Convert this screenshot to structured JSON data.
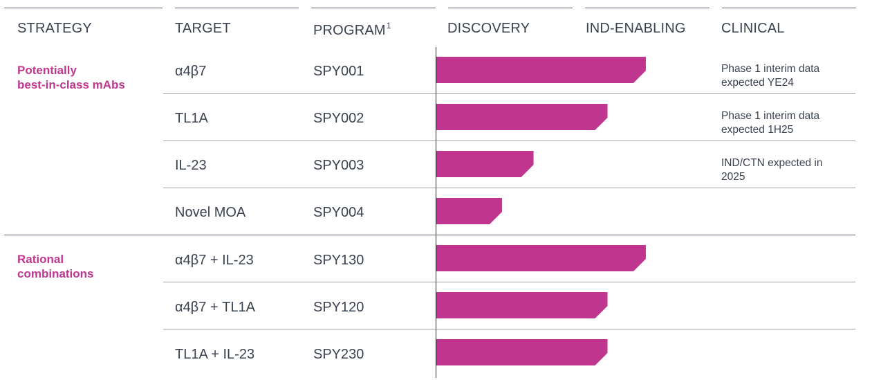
{
  "headers": {
    "strategy": "STRATEGY",
    "target": "TARGET",
    "program": "PROGRAM",
    "program_sup": "1",
    "discovery": "DISCOVERY",
    "ind_enabling": "IND-ENABLING",
    "clinical": "CLINICAL"
  },
  "groups": [
    {
      "label": "Potentially\nbest-in-class mAbs"
    },
    {
      "label": "Rational\ncombinations"
    }
  ],
  "colors": {
    "accent": "#c0368f",
    "text": "#3a4250",
    "rule": "#9aa0a8"
  },
  "chart_data": {
    "type": "bar",
    "title": "",
    "xlabel": "",
    "ylabel": "",
    "stages": [
      "DISCOVERY",
      "IND-ENABLING",
      "CLINICAL"
    ],
    "value_units": "development stage progress (0 = start of Discovery, 1 = end of Discovery, 2 = end of IND-Enabling)",
    "xlim": [
      0,
      2
    ],
    "categories": [
      "SPY001",
      "SPY002",
      "SPY003",
      "SPY004",
      "SPY130",
      "SPY120",
      "SPY230"
    ],
    "rows": [
      {
        "group": 0,
        "target": "α4β7",
        "program": "SPY001",
        "progress": 1.53,
        "clinical": "Phase 1 interim data\nexpected YE24"
      },
      {
        "group": 0,
        "target": "TL1A",
        "program": "SPY002",
        "progress": 1.25,
        "clinical": "Phase 1 interim data\nexpected 1H25"
      },
      {
        "group": 0,
        "target": "IL-23",
        "program": "SPY003",
        "progress": 0.71,
        "clinical": "IND/CTN expected in\n2025"
      },
      {
        "group": 0,
        "target": "Novel MOA",
        "program": "SPY004",
        "progress": 0.48,
        "clinical": ""
      },
      {
        "group": 1,
        "target": "α4β7 + IL-23",
        "program": "SPY130",
        "progress": 1.53,
        "clinical": ""
      },
      {
        "group": 1,
        "target": "α4β7 + TL1A",
        "program": "SPY120",
        "progress": 1.25,
        "clinical": ""
      },
      {
        "group": 1,
        "target": "TL1A + IL-23",
        "program": "SPY230",
        "progress": 1.25,
        "clinical": ""
      }
    ]
  }
}
